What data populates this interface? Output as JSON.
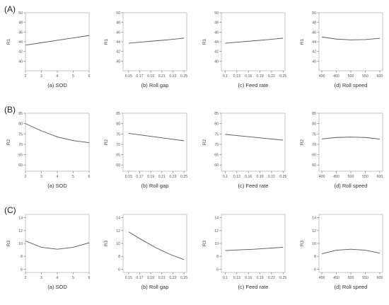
{
  "row_labels": [
    "(A)",
    "(B)",
    "(C)"
  ],
  "chart_data": [
    {
      "type": "line",
      "row": 0,
      "col": 0,
      "title": "",
      "xlabel": "(a) SOD",
      "ylabel": "R1",
      "xlim": [
        2,
        6
      ],
      "ylim": [
        38,
        50
      ],
      "xticks": [
        "2",
        "3",
        "4",
        "5",
        "6"
      ],
      "yticks": [
        "40",
        "42",
        "44",
        "46",
        "48",
        "50"
      ],
      "series": [
        {
          "x": [
            2,
            3,
            4,
            5,
            6
          ],
          "y": [
            43.3,
            43.8,
            44.3,
            44.8,
            45.3
          ]
        }
      ]
    },
    {
      "type": "line",
      "row": 0,
      "col": 1,
      "title": "",
      "xlabel": "(b) Roll gap",
      "ylabel": "R1",
      "xlim": [
        0.14,
        0.255
      ],
      "ylim": [
        38,
        50
      ],
      "xticks": [
        "0.15",
        "0.17",
        "0.19",
        "0.21",
        "0.23",
        "0.25"
      ],
      "yticks": [
        "40",
        "42",
        "44",
        "46",
        "48",
        "50"
      ],
      "series": [
        {
          "x": [
            0.15,
            0.175,
            0.2,
            0.225,
            0.25
          ],
          "y": [
            43.7,
            43.95,
            44.2,
            44.45,
            44.75
          ]
        }
      ]
    },
    {
      "type": "line",
      "row": 0,
      "col": 2,
      "title": "",
      "xlabel": "(c) Feed rate",
      "ylabel": "R1",
      "xlim": [
        0.09,
        0.255
      ],
      "ylim": [
        38,
        50
      ],
      "xticks": [
        "0.1",
        "0.13",
        "0.16",
        "0.19",
        "0.22",
        "0.25"
      ],
      "yticks": [
        "40",
        "42",
        "44",
        "46",
        "48",
        "50"
      ],
      "series": [
        {
          "x": [
            0.1,
            0.1375,
            0.175,
            0.2125,
            0.25
          ],
          "y": [
            43.7,
            43.95,
            44.2,
            44.45,
            44.75
          ]
        }
      ]
    },
    {
      "type": "line",
      "row": 0,
      "col": 3,
      "title": "",
      "xlabel": "(d) Roll speed",
      "ylabel": "R1",
      "xlim": [
        390,
        610
      ],
      "ylim": [
        38,
        50
      ],
      "xticks": [
        "400",
        "450",
        "500",
        "550",
        "600"
      ],
      "yticks": [
        "40",
        "42",
        "44",
        "46",
        "48",
        "50"
      ],
      "series": [
        {
          "x": [
            400,
            450,
            500,
            550,
            600
          ],
          "y": [
            45.0,
            44.55,
            44.4,
            44.45,
            44.7
          ]
        }
      ]
    },
    {
      "type": "line",
      "row": 1,
      "col": 0,
      "title": "",
      "xlabel": "(a) SOD",
      "ylabel": "R2",
      "xlim": [
        2,
        6
      ],
      "ylim": [
        57,
        85
      ],
      "xticks": [
        "2",
        "3",
        "4",
        "5",
        "6"
      ],
      "yticks": [
        "60",
        "65",
        "70",
        "75",
        "80",
        "85"
      ],
      "series": [
        {
          "x": [
            2,
            3,
            4,
            5,
            6
          ],
          "y": [
            80.0,
            76.5,
            73.6,
            71.8,
            70.8
          ]
        }
      ]
    },
    {
      "type": "line",
      "row": 1,
      "col": 1,
      "title": "",
      "xlabel": "(b) Roll gap",
      "ylabel": "R2",
      "xlim": [
        0.14,
        0.255
      ],
      "ylim": [
        57,
        85
      ],
      "xticks": [
        "0.15",
        "0.17",
        "0.19",
        "0.21",
        "0.23",
        "0.25"
      ],
      "yticks": [
        "60",
        "65",
        "70",
        "75",
        "80",
        "85"
      ],
      "series": [
        {
          "x": [
            0.15,
            0.175,
            0.2,
            0.225,
            0.25
          ],
          "y": [
            75.3,
            74.4,
            73.5,
            72.6,
            71.7
          ]
        }
      ]
    },
    {
      "type": "line",
      "row": 1,
      "col": 2,
      "title": "",
      "xlabel": "(c) Feed rate",
      "ylabel": "R2",
      "xlim": [
        0.09,
        0.255
      ],
      "ylim": [
        57,
        85
      ],
      "xticks": [
        "0.1",
        "0.13",
        "0.16",
        "0.19",
        "0.22",
        "0.25"
      ],
      "yticks": [
        "60",
        "65",
        "70",
        "75",
        "80",
        "85"
      ],
      "series": [
        {
          "x": [
            0.1,
            0.1375,
            0.175,
            0.2125,
            0.25
          ],
          "y": [
            74.8,
            74.1,
            73.4,
            72.7,
            72.0
          ]
        }
      ]
    },
    {
      "type": "line",
      "row": 1,
      "col": 3,
      "title": "",
      "xlabel": "(d) Roll speed",
      "ylabel": "R2",
      "xlim": [
        390,
        610
      ],
      "ylim": [
        57,
        85
      ],
      "xticks": [
        "400",
        "450",
        "500",
        "550",
        "600"
      ],
      "yticks": [
        "60",
        "65",
        "70",
        "75",
        "80",
        "85"
      ],
      "series": [
        {
          "x": [
            400,
            450,
            500,
            550,
            600
          ],
          "y": [
            72.6,
            73.3,
            73.5,
            73.3,
            72.5
          ]
        }
      ]
    },
    {
      "type": "line",
      "row": 2,
      "col": 0,
      "title": "",
      "xlabel": "(a) SOD",
      "ylabel": "R3",
      "xlim": [
        2,
        6
      ],
      "ylim": [
        5.5,
        14.5
      ],
      "xticks": [
        "2",
        "3",
        "4",
        "5",
        "6"
      ],
      "yticks": [
        "6",
        "8",
        "10",
        "12",
        "14"
      ],
      "series": [
        {
          "x": [
            2,
            3,
            4,
            5,
            6
          ],
          "y": [
            10.4,
            9.4,
            9.1,
            9.4,
            10.1
          ]
        }
      ]
    },
    {
      "type": "line",
      "row": 2,
      "col": 1,
      "title": "",
      "xlabel": "(b) Roll gap",
      "ylabel": "R3",
      "xlim": [
        0.14,
        0.255
      ],
      "ylim": [
        5.5,
        14.5
      ],
      "xticks": [
        "0.15",
        "0.17",
        "0.19",
        "0.21",
        "0.23",
        "0.25"
      ],
      "yticks": [
        "6",
        "8",
        "10",
        "12",
        "14"
      ],
      "series": [
        {
          "x": [
            0.15,
            0.175,
            0.2,
            0.225,
            0.25
          ],
          "y": [
            11.8,
            10.5,
            9.3,
            8.3,
            7.5
          ]
        }
      ]
    },
    {
      "type": "line",
      "row": 2,
      "col": 2,
      "title": "",
      "xlabel": "(c) Feed rate",
      "ylabel": "R3",
      "xlim": [
        0.09,
        0.255
      ],
      "ylim": [
        5.5,
        14.5
      ],
      "xticks": [
        "0.1",
        "0.13",
        "0.16",
        "0.19",
        "0.22",
        "0.25"
      ],
      "yticks": [
        "6",
        "8",
        "10",
        "12",
        "14"
      ],
      "series": [
        {
          "x": [
            0.1,
            0.1375,
            0.175,
            0.2125,
            0.25
          ],
          "y": [
            8.9,
            9.0,
            9.1,
            9.25,
            9.4
          ]
        }
      ]
    },
    {
      "type": "line",
      "row": 2,
      "col": 3,
      "title": "",
      "xlabel": "(d) Roll speed",
      "ylabel": "R3",
      "xlim": [
        390,
        610
      ],
      "ylim": [
        5.5,
        14.5
      ],
      "xticks": [
        "400",
        "450",
        "500",
        "550",
        "600"
      ],
      "yticks": [
        "6",
        "8",
        "10",
        "12",
        "14"
      ],
      "series": [
        {
          "x": [
            400,
            450,
            500,
            550,
            600
          ],
          "y": [
            8.4,
            8.95,
            9.1,
            8.95,
            8.5
          ]
        }
      ]
    }
  ]
}
